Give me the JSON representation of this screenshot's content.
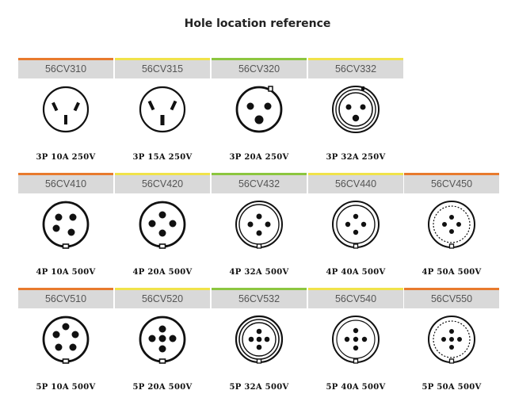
{
  "title": "Hole location reference",
  "colors": {
    "orange": "#e87a2d",
    "yellow": "#f0e34a",
    "green": "#8cc63f",
    "header_bg": "#d9d9d9"
  },
  "rows": [
    {
      "items": [
        {
          "model": "56CV310",
          "spec": "3P 10A 250V",
          "accent": "orange",
          "icon": "3p-flat-blades-socket-icon"
        },
        {
          "model": "56CV315",
          "spec": "3P 15A 250V",
          "accent": "yellow",
          "icon": "3p-flat-blades-socket-icon"
        },
        {
          "model": "56CV320",
          "spec": "3P 20A 250V",
          "accent": "green",
          "icon": "3p-round-pins-socket-icon"
        },
        {
          "model": "56CV332",
          "spec": "3P 32A 250V",
          "accent": "yellow",
          "icon": "3p-ringed-socket-icon"
        }
      ]
    },
    {
      "items": [
        {
          "model": "56CV410",
          "spec": "4P 10A 500V",
          "accent": "orange",
          "icon": "4p-socket-icon"
        },
        {
          "model": "56CV420",
          "spec": "4P 20A 500V",
          "accent": "yellow",
          "icon": "4p-socket-icon"
        },
        {
          "model": "56CV432",
          "spec": "4P 32A 500V",
          "accent": "green",
          "icon": "4p-ringed-socket-icon"
        },
        {
          "model": "56CV440",
          "spec": "4P 40A 500V",
          "accent": "yellow",
          "icon": "4p-ringed-socket-icon"
        },
        {
          "model": "56CV450",
          "spec": "4P 50A 500V",
          "accent": "orange",
          "icon": "4p-ringed-socket-icon"
        }
      ]
    },
    {
      "items": [
        {
          "model": "56CV510",
          "spec": "5P 10A 500V",
          "accent": "orange",
          "icon": "5p-socket-icon"
        },
        {
          "model": "56CV520",
          "spec": "5P 20A 500V",
          "accent": "yellow",
          "icon": "5p-socket-icon"
        },
        {
          "model": "56CV532",
          "spec": "5P 32A 500V",
          "accent": "green",
          "icon": "5p-ringed-socket-icon"
        },
        {
          "model": "56CV540",
          "spec": "5P 40A 500V",
          "accent": "yellow",
          "icon": "5p-ringed-socket-icon"
        },
        {
          "model": "56CV550",
          "spec": "5P 50A 500V",
          "accent": "orange",
          "icon": "5p-ringed-socket-icon"
        }
      ]
    }
  ]
}
